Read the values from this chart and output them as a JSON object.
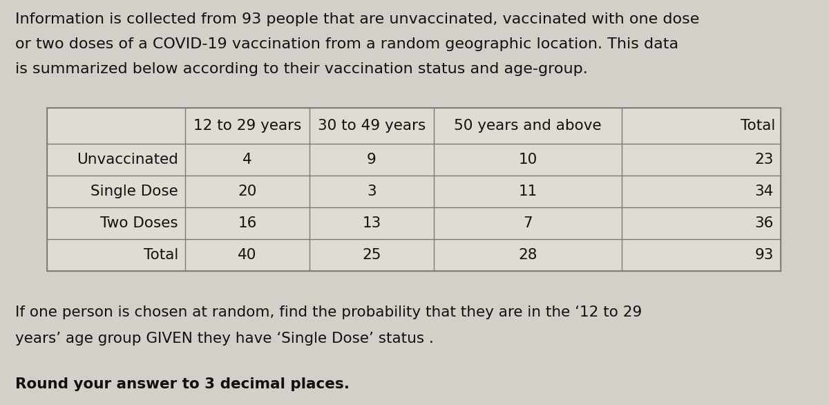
{
  "intro_text_lines": [
    "Information is collected from 93 people that are unvaccinated, vaccinated with one dose",
    "or two doses of a COVID-19 vaccination from a random geographic location. This data",
    "is summarized below according to their vaccination status and age-group."
  ],
  "col_headers": [
    "",
    "12 to 29 years",
    "30 to 49 years",
    "50 years and above",
    "Total"
  ],
  "rows": [
    [
      "Unvaccinated",
      "4",
      "9",
      "10",
      "23"
    ],
    [
      "Single Dose",
      "20",
      "3",
      "11",
      "34"
    ],
    [
      "Two Doses",
      "16",
      "13",
      "7",
      "36"
    ],
    [
      "Total",
      "40",
      "25",
      "28",
      "93"
    ]
  ],
  "question_text_lines": [
    "If one person is chosen at random, find the probability that they are in the ‘12 to 29",
    "years’ age group GIVEN they have ‘Single Dose’ status ."
  ],
  "bold_text": "Round your answer to 3 decimal places.",
  "bg_color": "#d4cfc8",
  "table_bg": "#e0dbd3",
  "table_border_color": "#7a7a7a",
  "intro_fontsize": 16,
  "table_fontsize": 15.5,
  "question_fontsize": 15.5,
  "bold_fontsize": 15.5
}
